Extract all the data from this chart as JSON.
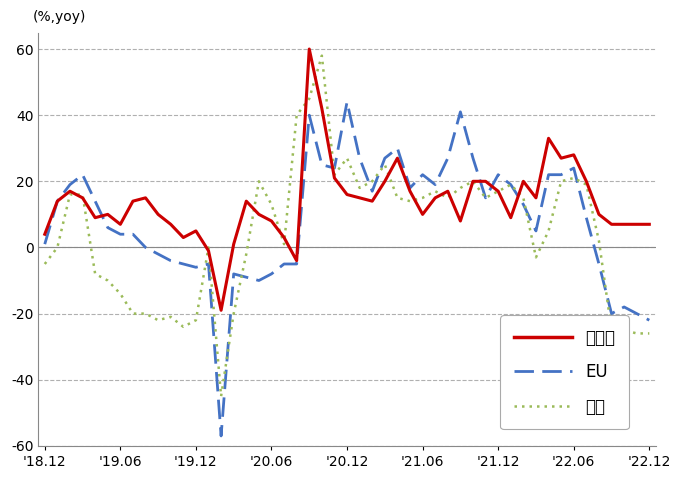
{
  "title": "",
  "ylabel": "(%,yoy)",
  "ylim": [
    -60,
    65
  ],
  "yticks": [
    -60,
    -40,
    -20,
    0,
    20,
    40,
    60
  ],
  "background_color": "#ffffff",
  "grid_color": "#b0b0b0",
  "x_labels": [
    "'18.12",
    "'19.06",
    "'19.12",
    "'20.06",
    "'20.12",
    "'21.06",
    "'21.12",
    "'22.06",
    "'22.12"
  ],
  "asean_color": "#cc0000",
  "eu_color": "#4472c4",
  "us_color": "#9bbb59",
  "legend_labels": [
    "아세안",
    "EU",
    "미국"
  ],
  "asean": [
    4,
    14,
    17,
    15,
    9,
    10,
    7,
    14,
    15,
    10,
    7,
    3,
    5,
    -1,
    -19,
    1,
    14,
    10,
    8,
    3,
    -4,
    60,
    42,
    21,
    16,
    15,
    14,
    20,
    27,
    17,
    10,
    15,
    17,
    8,
    20,
    20,
    17,
    9,
    20,
    15,
    33,
    27,
    28,
    20,
    10,
    7,
    7,
    7,
    7
  ],
  "eu": [
    1,
    14,
    19,
    22,
    14,
    6,
    4,
    4,
    0,
    -2,
    -4,
    -5,
    -6,
    -5,
    -57,
    -8,
    -9,
    -10,
    -8,
    -5,
    -5,
    40,
    25,
    24,
    44,
    27,
    17,
    27,
    30,
    18,
    22,
    19,
    27,
    41,
    27,
    15,
    22,
    19,
    13,
    5,
    22,
    22,
    24,
    9,
    -5,
    -20,
    -18,
    -20,
    -22
  ],
  "us": [
    -5,
    0,
    16,
    16,
    -8,
    -10,
    -14,
    -20,
    -20,
    -22,
    -21,
    -24,
    -22,
    0,
    -45,
    -20,
    -2,
    20,
    13,
    1,
    40,
    45,
    58,
    22,
    27,
    18,
    20,
    25,
    15,
    14,
    15,
    17,
    15,
    18,
    20,
    15,
    17,
    19,
    15,
    -3,
    5,
    20,
    21,
    19,
    2,
    -25,
    -25,
    -26,
    -26
  ],
  "n_points": 49,
  "x_tick_positions": [
    0,
    6,
    12,
    18,
    24,
    30,
    36,
    42,
    48
  ]
}
